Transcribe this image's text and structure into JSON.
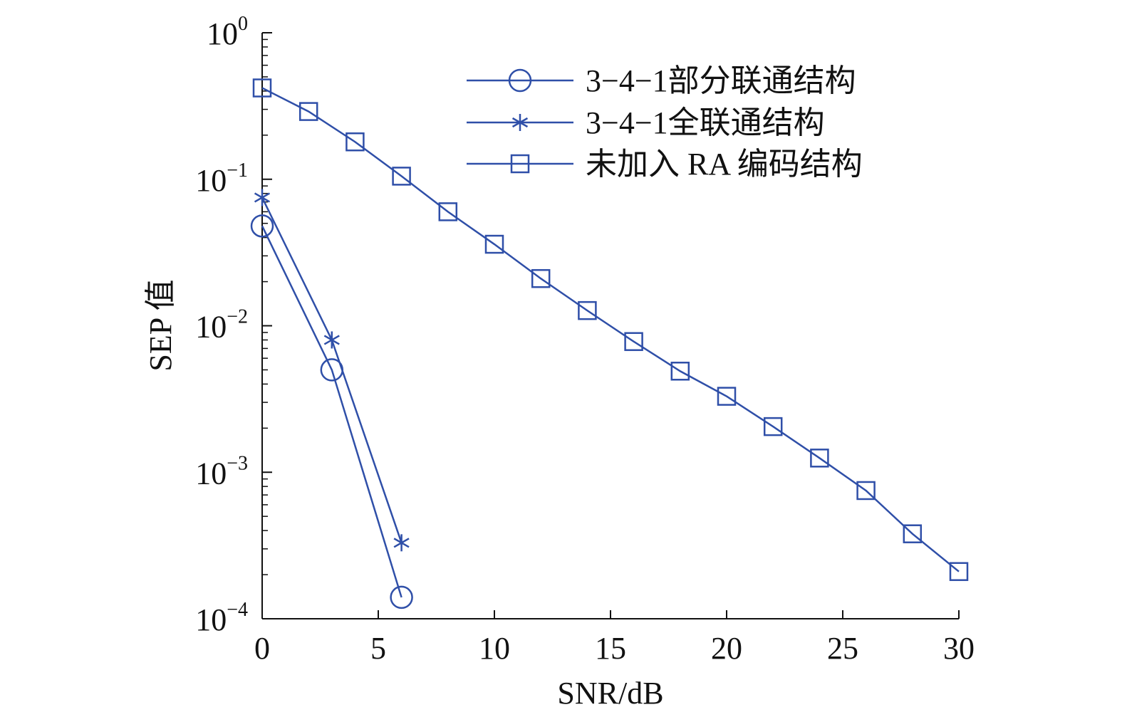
{
  "chart_data": {
    "type": "line",
    "xlabel": "SNR/dB",
    "ylabel": "SEP 值",
    "xlim": [
      0,
      30
    ],
    "ylim": [
      0.0001,
      1
    ],
    "yscale": "log",
    "x_ticks": [
      0,
      5,
      10,
      15,
      20,
      25,
      30
    ],
    "y_ticks": [
      {
        "base": "10",
        "exp": "0"
      },
      {
        "base": "10",
        "exp": "−1"
      },
      {
        "base": "10",
        "exp": "−2"
      },
      {
        "base": "10",
        "exp": "−3"
      },
      {
        "base": "10",
        "exp": "−4"
      }
    ],
    "grid": false,
    "legend_position": "top-right",
    "series": [
      {
        "name": "3−4−1部分联通结构",
        "marker": "circle",
        "color": "#2f4fa8",
        "x": [
          0,
          3,
          6
        ],
        "y": [
          0.048,
          0.005,
          0.00014
        ]
      },
      {
        "name": "3−4−1全联通结构",
        "marker": "asterisk",
        "color": "#2f4fa8",
        "x": [
          0,
          3,
          6
        ],
        "y": [
          0.075,
          0.008,
          0.00033
        ]
      },
      {
        "name": "未加入 RA 编码结构",
        "marker": "square",
        "color": "#2f4fa8",
        "x": [
          0,
          2,
          4,
          6,
          8,
          10,
          12,
          14,
          16,
          18,
          20,
          22,
          24,
          26,
          28,
          30
        ],
        "y": [
          0.42,
          0.29,
          0.18,
          0.105,
          0.06,
          0.036,
          0.021,
          0.0127,
          0.0078,
          0.0049,
          0.0033,
          0.00205,
          0.00125,
          0.00075,
          0.00038,
          0.00021
        ]
      }
    ]
  }
}
